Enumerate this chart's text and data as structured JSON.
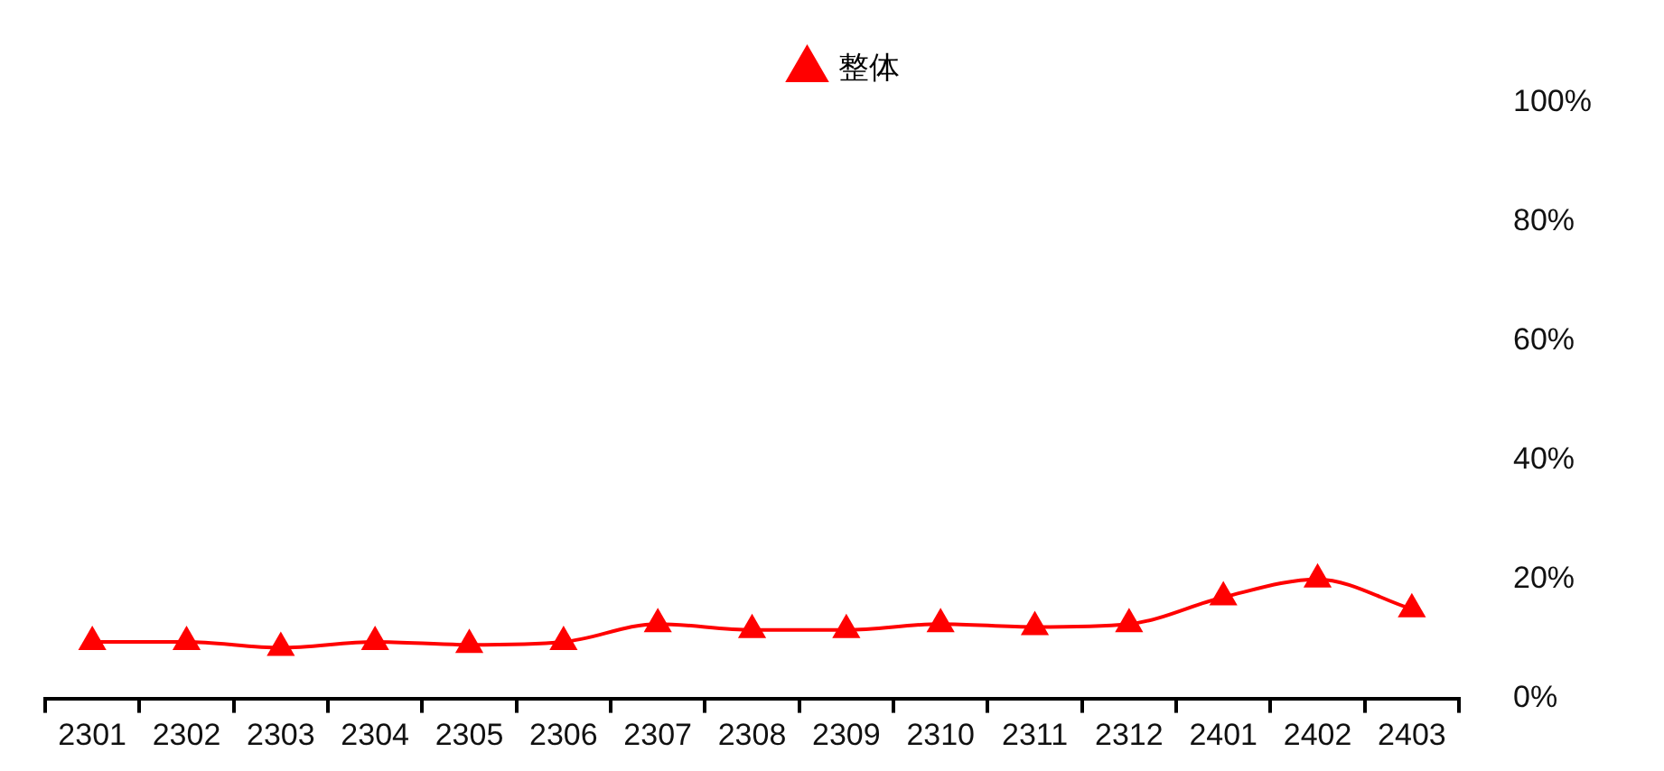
{
  "chart_data": {
    "type": "line",
    "categories": [
      "2301",
      "2302",
      "2303",
      "2304",
      "2305",
      "2306",
      "2307",
      "2308",
      "2309",
      "2310",
      "2311",
      "2312",
      "2401",
      "2402",
      "2403"
    ],
    "series": [
      {
        "name": "整体",
        "color": "#ff0000",
        "values": [
          9.5,
          9.5,
          8.5,
          9.5,
          9,
          9.5,
          12.5,
          11.5,
          11.5,
          12.5,
          12,
          12.5,
          17,
          20,
          15
        ]
      }
    ],
    "ylim": [
      0,
      100
    ],
    "yticks": [
      {
        "value": 0,
        "label": "0%"
      },
      {
        "value": 20,
        "label": "20%"
      },
      {
        "value": 40,
        "label": "40%"
      },
      {
        "value": 60,
        "label": "60%"
      },
      {
        "value": 80,
        "label": "80%"
      },
      {
        "value": 100,
        "label": "100%"
      }
    ],
    "grid": false,
    "legend": "top",
    "marker": "triangle",
    "line_style": "solid"
  }
}
